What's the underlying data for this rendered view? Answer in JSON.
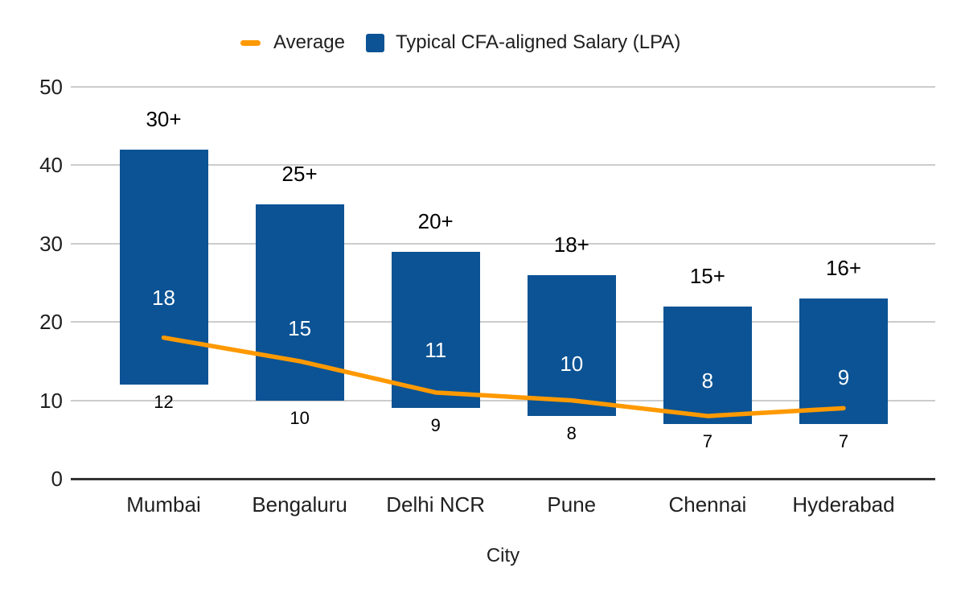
{
  "chart_data": {
    "type": "bar",
    "subtype": "floating-range-columns-with-average-line",
    "categories": [
      "Mumbai",
      "Bengaluru",
      "Delhi NCR",
      "Pune",
      "Chennai",
      "Hyderabad"
    ],
    "series": [
      {
        "name": "Average",
        "type": "line",
        "color": "#FF9900",
        "values": [
          18,
          15,
          11,
          10,
          8,
          9
        ]
      },
      {
        "name": "Typical CFA-aligned Salary (LPA)",
        "type": "bar",
        "color": "#0B5394",
        "ranges": [
          [
            12,
            42
          ],
          [
            10,
            35
          ],
          [
            9,
            29
          ],
          [
            8,
            26
          ],
          [
            7,
            22
          ],
          [
            7,
            23
          ]
        ],
        "labels_above": [
          "30+",
          "25+",
          "20+",
          "18+",
          "15+",
          "16+"
        ],
        "labels_inside": [
          "18",
          "15",
          "11",
          "10",
          "8",
          "9"
        ],
        "labels_below": [
          "12",
          "10",
          "9",
          "8",
          "7",
          "7"
        ]
      }
    ],
    "xlabel": "City",
    "ylim": [
      0,
      50
    ],
    "yticks": [
      0,
      10,
      20,
      30,
      40,
      50
    ],
    "grid": true,
    "legend_position": "top"
  },
  "colors": {
    "background": "#FFFFFF",
    "gridline": "#CCCCCC",
    "baseline": "#333333",
    "axis_text": "#1F1F1F",
    "annotation_text": "#000000",
    "inside_label_text": "#FFFFFF"
  }
}
